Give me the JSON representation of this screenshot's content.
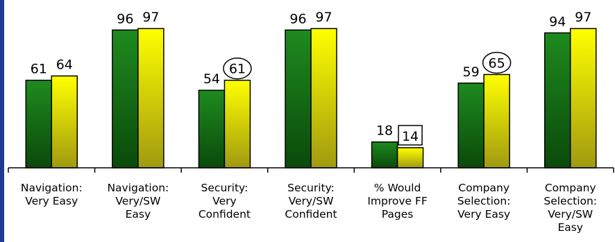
{
  "chart_data": {
    "type": "bar",
    "categories": [
      [
        "Navigation:",
        "Very Easy"
      ],
      [
        "Navigation:",
        "Very/SW",
        "Easy"
      ],
      [
        "Security:",
        "Very",
        "Confident"
      ],
      [
        "Security:",
        "Very/SW",
        "Confident"
      ],
      [
        "% Would",
        "Improve FF",
        "Pages"
      ],
      [
        "Company",
        "Selection:",
        "Very Easy"
      ],
      [
        "Company",
        "Selection:",
        "Very/SW",
        "Easy"
      ]
    ],
    "series": [
      {
        "values": [
          61,
          96,
          54,
          96,
          18,
          59,
          94
        ],
        "color": "#1e8a1e"
      },
      {
        "values": [
          64,
          97,
          61,
          97,
          14,
          65,
          97
        ],
        "color": "#ffff00"
      }
    ],
    "annotations": [
      {
        "category_index": 2,
        "series_index": 1,
        "style": "circle"
      },
      {
        "category_index": 4,
        "series_index": 1,
        "style": "box"
      },
      {
        "category_index": 5,
        "series_index": 1,
        "style": "circle"
      }
    ],
    "ylim": [
      0,
      100
    ],
    "grid": false,
    "legend": "none"
  }
}
